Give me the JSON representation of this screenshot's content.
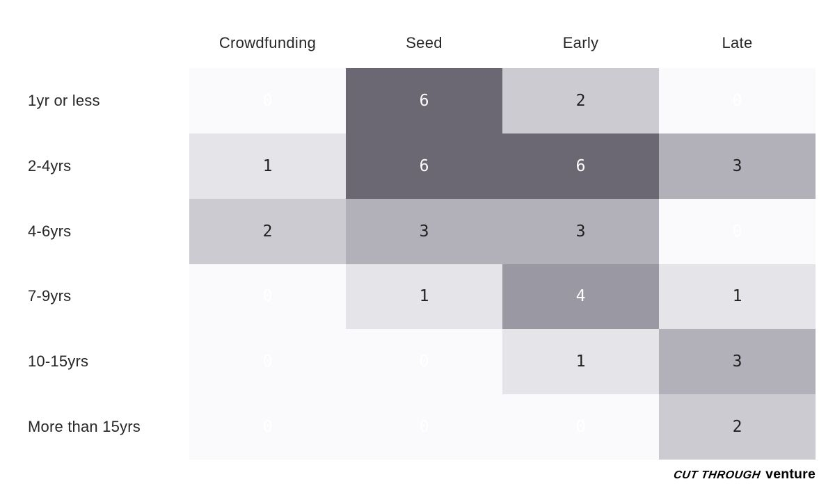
{
  "chart_data": {
    "type": "heatmap",
    "columns": [
      "Crowdfunding",
      "Seed",
      "Early",
      "Late"
    ],
    "rows": [
      "1yr or less",
      "2-4yrs",
      "4-6yrs",
      "7-9yrs",
      "10-15yrs",
      "More than 15yrs"
    ],
    "values": [
      [
        0,
        6,
        2,
        0
      ],
      [
        1,
        6,
        6,
        3
      ],
      [
        2,
        3,
        3,
        0
      ],
      [
        0,
        1,
        4,
        1
      ],
      [
        0,
        0,
        1,
        3
      ],
      [
        0,
        0,
        0,
        2
      ]
    ],
    "value_range": [
      0,
      6
    ],
    "grid": false,
    "legend": "none",
    "cell_colors_by_value": {
      "0": "#fafafd",
      "1": "#e4e4e9",
      "2": "#cccbd2",
      "3": "#b2b1b9",
      "4": "#9a98a2",
      "6": "#6b6773"
    },
    "text_colors_by_value": {
      "0": "#ffffff",
      "1": "#1f1f1f",
      "2": "#1f1f1f",
      "3": "#1f1f1f",
      "4": "#ffffff",
      "6": "#ffffff"
    }
  },
  "branding": {
    "script_text": "Cut Through",
    "bold_text": "venture"
  }
}
